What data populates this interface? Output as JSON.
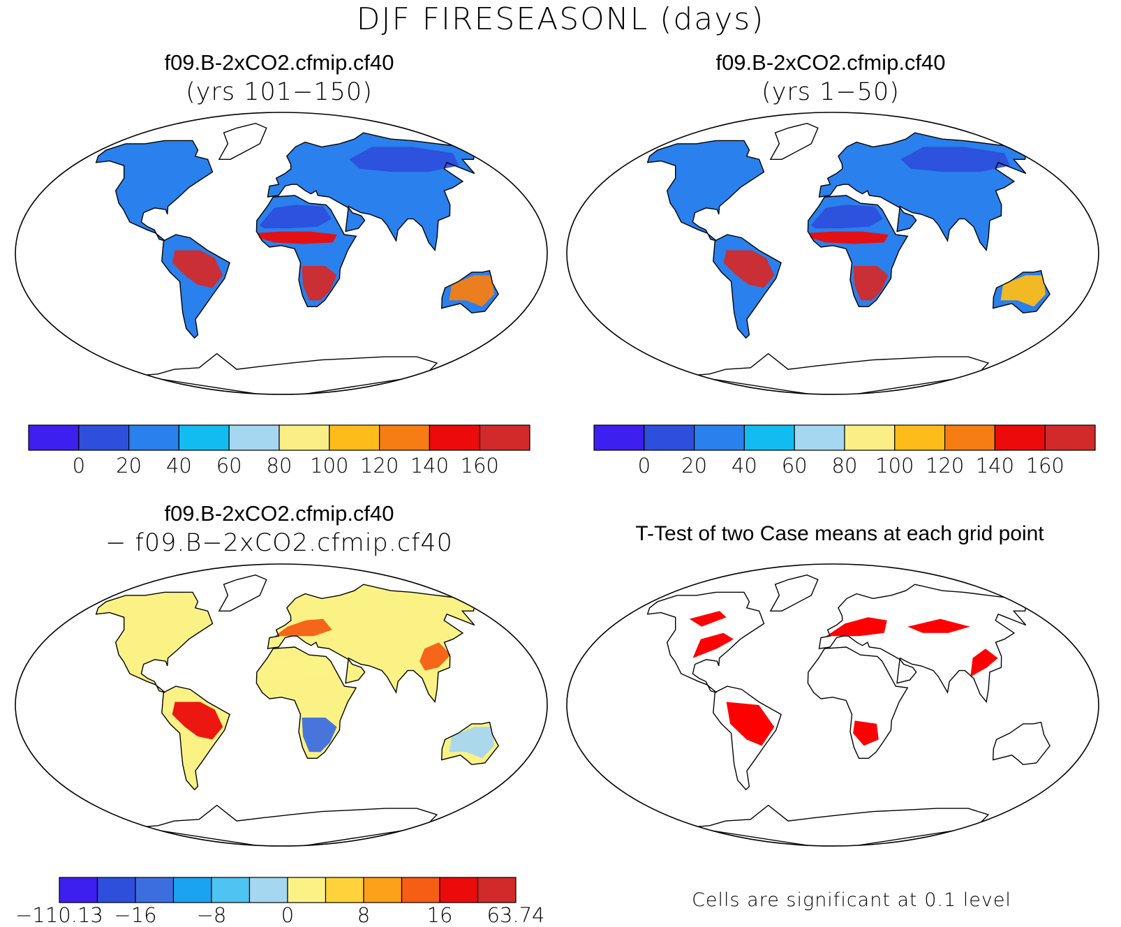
{
  "title": "DJF FIRESEASONL (days)",
  "palettes": {
    "seq": [
      "#3d1ff0",
      "#2d4fdc",
      "#2a80ec",
      "#12bcf0",
      "#a6d7f0",
      "#fbee86",
      "#fdbc1a",
      "#f57d14",
      "#ec0b0b",
      "#d22a2a"
    ],
    "div": [
      "#3d1ff0",
      "#2d4fdc",
      "#3d6ee0",
      "#1aa3f0",
      "#4fc3f2",
      "#a6d7f0",
      "#fbf286",
      "#fdd23a",
      "#fda01a",
      "#f55e14",
      "#ec0b0b",
      "#d22a2a"
    ]
  },
  "colors": {
    "significance": "#ff0000",
    "coast": "#000000",
    "frame": "#000000"
  },
  "chart_data": [
    {
      "type": "heatmap",
      "title": "f09.B-2xCO2.cfmip.cf40",
      "subtitle": "(yrs 101−150)",
      "colorbar_ticks": [
        "0",
        "20",
        "40",
        "60",
        "80",
        "100",
        "120",
        "140",
        "160"
      ],
      "palette": "seq",
      "regions": [
        {
          "name": "Sahara",
          "value": 0
        },
        {
          "name": "Siberia",
          "value": 10
        },
        {
          "name": "Sahel",
          "value": 150
        },
        {
          "name": "Amazon",
          "value": 160
        },
        {
          "name": "Southern Africa",
          "value": 160
        },
        {
          "name": "Australia",
          "value": 120
        }
      ]
    },
    {
      "type": "heatmap",
      "title": "f09.B-2xCO2.cfmip.cf40",
      "subtitle": "(yrs 1−50)",
      "colorbar_ticks": [
        "0",
        "20",
        "40",
        "60",
        "80",
        "100",
        "120",
        "140",
        "160"
      ],
      "palette": "seq",
      "regions": [
        {
          "name": "Sahara",
          "value": 0
        },
        {
          "name": "Siberia",
          "value": 10
        },
        {
          "name": "Sahel",
          "value": 140
        },
        {
          "name": "Amazon",
          "value": 160
        },
        {
          "name": "Southern Africa",
          "value": 160
        },
        {
          "name": "Australia",
          "value": 110
        }
      ]
    },
    {
      "type": "heatmap",
      "title": "f09.B-2xCO2.cfmip.cf40",
      "subtitle": "− f09.B−2xCO2.cfmip.cf40",
      "colorbar_ticks": [
        "−110.13",
        "−16",
        "−8",
        "0",
        "8",
        "16",
        "63.74"
      ],
      "palette": "div",
      "regions": [
        {
          "name": "Sahara",
          "value": 2
        },
        {
          "name": "Europe",
          "value": 14
        },
        {
          "name": "Amazon",
          "value": 16
        },
        {
          "name": "Southern Africa",
          "value": -16
        },
        {
          "name": "Australia",
          "value": -4
        },
        {
          "name": "East Asia",
          "value": 12
        }
      ]
    },
    {
      "type": "heatmap",
      "title": "T-Test of two Case means at each grid point",
      "note": "Cells are significant at 0.1 level",
      "significance_level": 0.1
    }
  ]
}
